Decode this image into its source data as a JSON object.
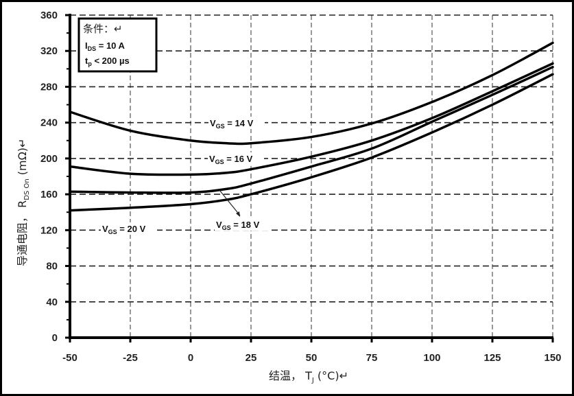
{
  "chart_data": {
    "type": "line",
    "title": "",
    "xlabel": "结温， T",
    "xlabel_sub": "J",
    "xlabel_unit": " (°C)↵",
    "ylabel": "导通电阻， R",
    "ylabel_sub": "DS On",
    "ylabel_unit": " (mΩ)↵",
    "xlim": [
      -50,
      150
    ],
    "ylim": [
      0,
      360
    ],
    "x_ticks": [
      -50,
      -25,
      0,
      25,
      50,
      75,
      100,
      125,
      150
    ],
    "y_ticks": [
      0,
      40,
      80,
      120,
      160,
      200,
      240,
      280,
      320,
      360
    ],
    "grid": true,
    "x": [
      -50,
      -25,
      0,
      15,
      25,
      50,
      75,
      100,
      125,
      150
    ],
    "series": [
      {
        "name": "VGS = 14 V",
        "values": [
          252,
          231,
          220,
          217,
          217,
          224,
          239,
          263,
          293,
          329
        ]
      },
      {
        "name": "VGS = 16 V",
        "values": [
          191,
          183,
          182,
          184,
          188,
          202,
          220,
          245,
          275,
          306
        ]
      },
      {
        "name": "VGS = 18 V",
        "values": [
          163,
          162,
          162,
          166,
          172,
          191,
          211,
          241,
          271,
          302
        ]
      },
      {
        "name": "VGS = 20 V",
        "values": [
          142,
          145,
          149,
          154,
          160,
          179,
          201,
          229,
          260,
          294
        ]
      }
    ],
    "annotations": [
      {
        "main": "V",
        "sub": "GS",
        "rest": " = 14 V"
      },
      {
        "main": "V",
        "sub": "GS",
        "rest": " = 16 V"
      },
      {
        "main": "V",
        "sub": "GS",
        "rest": " = 18 V"
      },
      {
        "main": "V",
        "sub": "GS",
        "rest": " = 20 V"
      }
    ],
    "conditions": {
      "title": "条件：↵",
      "line1_main": "I",
      "line1_sub": "DS",
      "line1_rest": " = 10 A",
      "line2_main": "t",
      "line2_sub": "p",
      "line2_rest": " < 200 µs"
    }
  }
}
